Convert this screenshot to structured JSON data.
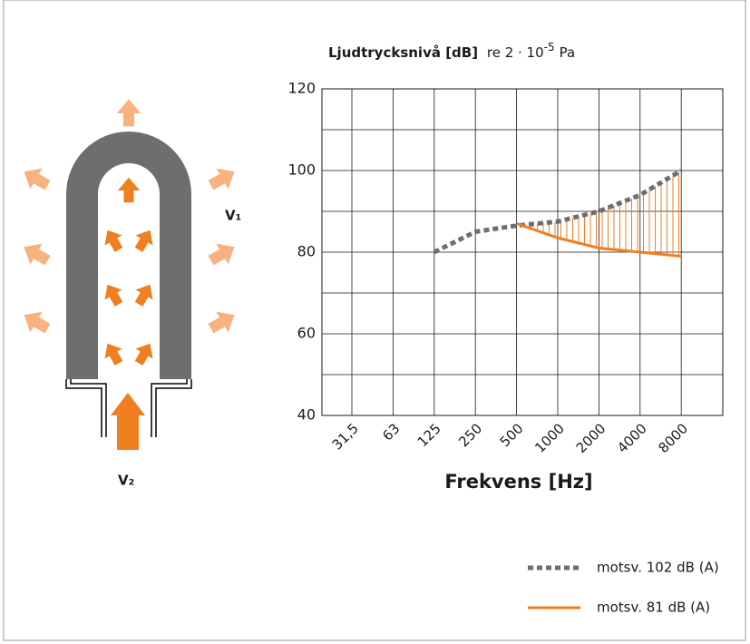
{
  "chart_data": {
    "type": "line",
    "title": "Ljudtrycksnivå [dB]",
    "title_ref": "re 2 · 10",
    "title_exponent": "-5",
    "title_unit": "Pa",
    "x_label": "Frekvens [Hz]",
    "categories": [
      "31,5",
      "63",
      "125",
      "250",
      "500",
      "1000",
      "2000",
      "4000",
      "8000"
    ],
    "series": [
      {
        "name": "motsv. 102 dB (A)",
        "color": "#6d6e70",
        "dashed": true,
        "values": [
          null,
          null,
          80,
          85,
          86.5,
          87.5,
          90,
          94,
          100
        ]
      },
      {
        "name": "motsv. 81 dB (A)",
        "color": "#f07f21",
        "dashed": false,
        "values": [
          null,
          null,
          null,
          null,
          87,
          83.5,
          81,
          80,
          79
        ]
      }
    ],
    "ylim": [
      40,
      120
    ],
    "yticks": [
      40,
      60,
      80,
      100,
      120
    ],
    "minor_yticks": [
      50,
      70,
      90,
      110
    ],
    "grid": true,
    "hatch_between_series": true,
    "legend": "bottom-right"
  },
  "diagram": {
    "label_top": "V₁",
    "label_bottom": "V₂"
  }
}
